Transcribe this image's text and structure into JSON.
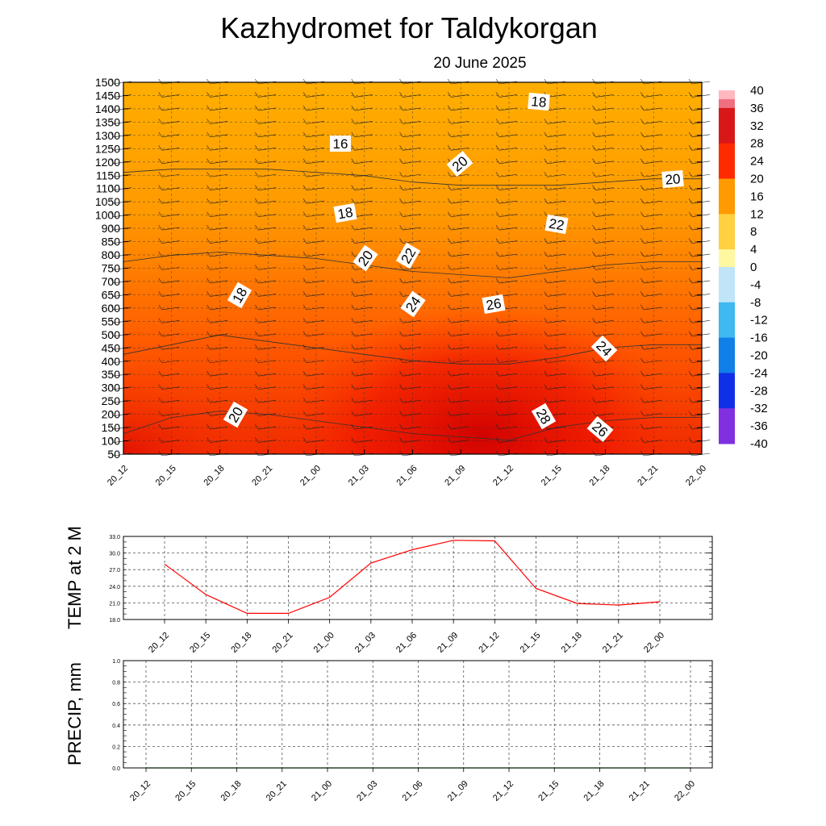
{
  "title": "Kazhydromet  for Taldykorgan",
  "subtitle": "20 June 2025",
  "time_labels": [
    "20_12",
    "20_15",
    "20_18",
    "20_21",
    "21_00",
    "21_03",
    "21_06",
    "21_09",
    "21_12",
    "21_15",
    "21_18",
    "21_21",
    "22_00"
  ],
  "colors": {
    "temp_line": "#ff0000",
    "precip_line": "#1a8a1a",
    "grid": "#555555"
  },
  "chart_data": [
    {
      "type": "heatmap",
      "name": "cross_section",
      "x": [
        "20_12",
        "20_15",
        "20_18",
        "20_21",
        "21_00",
        "21_03",
        "21_06",
        "21_09",
        "21_12",
        "21_15",
        "21_18",
        "21_21",
        "22_00"
      ],
      "y_levels": [
        50,
        100,
        150,
        200,
        250,
        300,
        350,
        400,
        450,
        500,
        550,
        600,
        650,
        700,
        750,
        800,
        850,
        900,
        1000,
        1050,
        1100,
        1150,
        1200,
        1250,
        1300,
        1350,
        1400,
        1450,
        1500
      ],
      "y_tick_labels": [
        "50",
        "100",
        "150",
        "200",
        "250",
        "300",
        "350",
        "400",
        "450",
        "500",
        "550",
        "600",
        "650",
        "700",
        "750",
        "800",
        "850",
        "900",
        "1000",
        "1050",
        "1100",
        "1150",
        "1200",
        "1250",
        "1300",
        "1350",
        "1400",
        "1450",
        "1500"
      ],
      "contour_labels": [
        "16",
        "18",
        "18",
        "20",
        "20",
        "20",
        "20",
        "22",
        "22",
        "24",
        "24",
        "26",
        "26",
        "28",
        "18"
      ],
      "colorbar": {
        "labels": [
          "40",
          "36",
          "32",
          "28",
          "24",
          "20",
          "16",
          "12",
          "8",
          "4",
          "0",
          "-4",
          "-8",
          "-12",
          "-16",
          "-20",
          "-24",
          "-28",
          "-32",
          "-36",
          "-40"
        ],
        "range": [
          -40,
          40
        ]
      },
      "contour_level_approx": [
        [
          28,
          23,
          21,
          22,
          24,
          26,
          28,
          29,
          30,
          26,
          24,
          23,
          23
        ],
        [
          24,
          21,
          18,
          20,
          22,
          24,
          26,
          27,
          27,
          25,
          22,
          21,
          21
        ],
        [
          20,
          18,
          17,
          18,
          19,
          21,
          23,
          24,
          25,
          23,
          21,
          20,
          20
        ],
        [
          17,
          16,
          16,
          16,
          17,
          18,
          20,
          21,
          21,
          21,
          20,
          19,
          19
        ]
      ]
    },
    {
      "type": "line",
      "name": "temp_2m",
      "ylabel": "TEMP at 2 M",
      "x": [
        "20_12",
        "20_15",
        "20_18",
        "20_21",
        "21_00",
        "21_03",
        "21_06",
        "21_09",
        "21_12",
        "21_15",
        "21_18",
        "21_21",
        "22_00"
      ],
      "series": [
        {
          "values": [
            28.0,
            22.5,
            19.1,
            19.1,
            22.0,
            28.2,
            30.6,
            32.3,
            32.2,
            23.6,
            20.9,
            20.6,
            21.2
          ]
        }
      ],
      "yticks": [
        "18.0",
        "21.0",
        "24.0",
        "27.0",
        "30.0",
        "33.0"
      ],
      "ylim": [
        18,
        33
      ],
      "grid": true
    },
    {
      "type": "line",
      "name": "precip",
      "ylabel": "PRECIP, mm",
      "x": [
        "20_12",
        "20_15",
        "20_18",
        "20_21",
        "21_00",
        "21_03",
        "21_06",
        "21_09",
        "21_12",
        "21_15",
        "21_18",
        "21_21",
        "22_00"
      ],
      "series": [
        {
          "values": [
            0,
            0,
            0,
            0,
            0,
            0,
            0,
            0,
            0,
            0,
            0,
            0,
            0
          ]
        }
      ],
      "yticks": [
        "0.0",
        "0.2",
        "0.4",
        "0.6",
        "0.8",
        "1.0"
      ],
      "ylim": [
        0,
        1
      ],
      "grid": true
    }
  ]
}
